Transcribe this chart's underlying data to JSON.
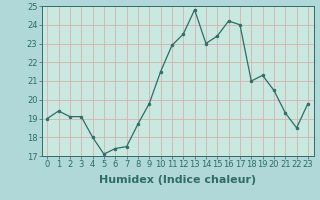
{
  "x": [
    0,
    1,
    2,
    3,
    4,
    5,
    6,
    7,
    8,
    9,
    10,
    11,
    12,
    13,
    14,
    15,
    16,
    17,
    18,
    19,
    20,
    21,
    22,
    23
  ],
  "y": [
    19.0,
    19.4,
    19.1,
    19.1,
    18.0,
    17.1,
    17.4,
    17.5,
    18.7,
    19.8,
    21.5,
    22.9,
    23.5,
    24.8,
    23.0,
    23.4,
    24.2,
    24.0,
    21.0,
    21.3,
    20.5,
    19.3,
    18.5,
    19.8
  ],
  "xlabel": "Humidex (Indice chaleur)",
  "ylim": [
    17,
    25
  ],
  "xlim": [
    -0.5,
    23.5
  ],
  "yticks": [
    17,
    18,
    19,
    20,
    21,
    22,
    23,
    24,
    25
  ],
  "xticks": [
    0,
    1,
    2,
    3,
    4,
    5,
    6,
    7,
    8,
    9,
    10,
    11,
    12,
    13,
    14,
    15,
    16,
    17,
    18,
    19,
    20,
    21,
    22,
    23
  ],
  "line_color": "#2d6e65",
  "marker": "o",
  "marker_size": 2.0,
  "bg_color": "#b0d8d8",
  "plot_bg_color": "#c8e8e0",
  "grid_color": "#d8b0b0",
  "tick_label_size": 6,
  "xlabel_size": 8,
  "xlabel_color": "#2d6e65",
  "tick_color": "#2d6e65"
}
